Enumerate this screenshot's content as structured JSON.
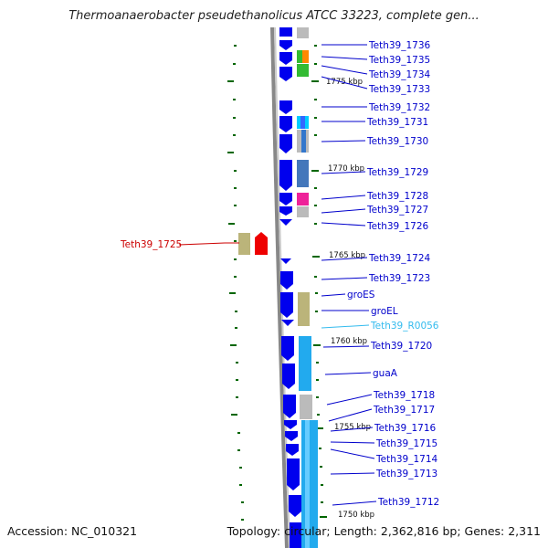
{
  "title": "Thermoanaerobacter pseudethanolicus ATCC 33223, complete gen...",
  "footer": {
    "accession": "Accession: NC_010321",
    "summary": "Topology: circular; Length: 2,362,816 bp; Genes: 2,311"
  },
  "colors": {
    "gene_arrow": "#0000ee",
    "highlight_gene": "#cc0000",
    "rna_gene": "#33bbee",
    "label_line": "#0000cc",
    "ruler": "#888888",
    "tick": "#006600"
  },
  "gene_labels": [
    {
      "name": "Teth39_1736",
      "kind": "gene"
    },
    {
      "name": "Teth39_1735",
      "kind": "gene"
    },
    {
      "name": "Teth39_1734",
      "kind": "gene"
    },
    {
      "name": "Teth39_1733",
      "kind": "gene"
    },
    {
      "name": "Teth39_1732",
      "kind": "gene"
    },
    {
      "name": "Teth39_1731",
      "kind": "gene"
    },
    {
      "name": "Teth39_1730",
      "kind": "gene"
    },
    {
      "name": "Teth39_1729",
      "kind": "gene"
    },
    {
      "name": "Teth39_1728",
      "kind": "gene"
    },
    {
      "name": "Teth39_1727",
      "kind": "gene"
    },
    {
      "name": "Teth39_1726",
      "kind": "gene"
    },
    {
      "name": "Teth39_1724",
      "kind": "gene"
    },
    {
      "name": "Teth39_1723",
      "kind": "gene"
    },
    {
      "name": "groES",
      "kind": "gene"
    },
    {
      "name": "groEL",
      "kind": "gene"
    },
    {
      "name": "Teth39_R0056",
      "kind": "rna"
    },
    {
      "name": "Teth39_1720",
      "kind": "gene"
    },
    {
      "name": "guaA",
      "kind": "gene"
    },
    {
      "name": "Teth39_1718",
      "kind": "gene"
    },
    {
      "name": "Teth39_1717",
      "kind": "gene"
    },
    {
      "name": "Teth39_1716",
      "kind": "gene"
    },
    {
      "name": "Teth39_1715",
      "kind": "gene"
    },
    {
      "name": "Teth39_1714",
      "kind": "gene"
    },
    {
      "name": "Teth39_1713",
      "kind": "gene"
    },
    {
      "name": "Teth39_1712",
      "kind": "gene"
    }
  ],
  "left_label": {
    "name": "Teth39_1725",
    "kind": "highlight"
  },
  "kbp_marks": [
    "1775 kbp",
    "1770 kbp",
    "1765 kbp",
    "1760 kbp",
    "1755 kbp",
    "1750 kbp"
  ]
}
